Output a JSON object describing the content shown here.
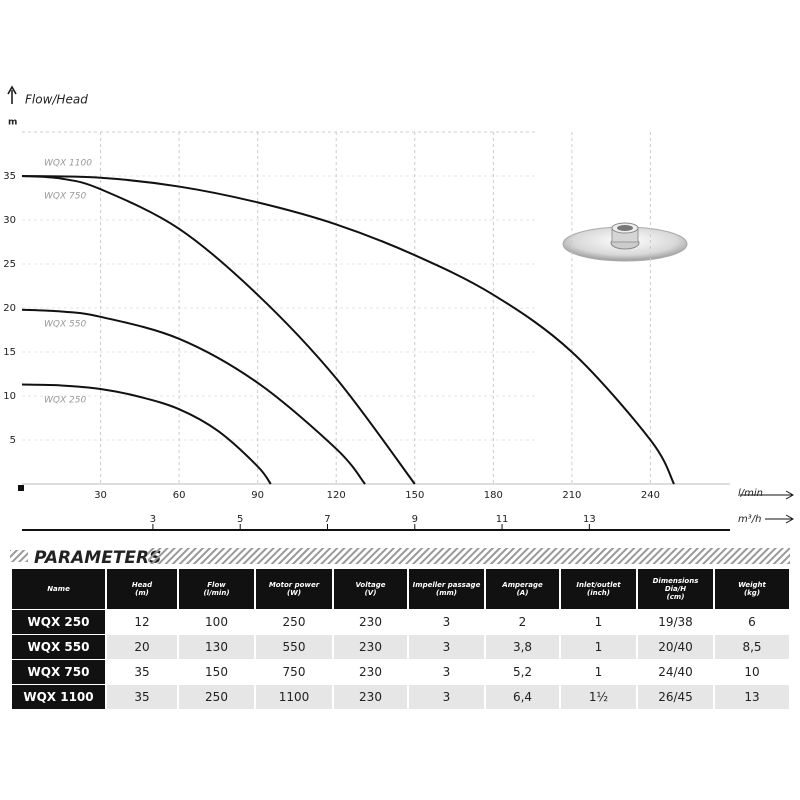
{
  "chart_data": {
    "type": "line",
    "title": "Flow/Head",
    "y_unit": "m",
    "x_unit": "l/min",
    "x2_unit": "m³/h",
    "xlim": [
      0,
      270
    ],
    "xticks": [
      30,
      60,
      90,
      120,
      150,
      180,
      210,
      240
    ],
    "x2lim": [
      0,
      16.2
    ],
    "x2ticks": [
      3,
      5,
      7,
      9,
      11,
      13
    ],
    "ylim": [
      0,
      40
    ],
    "yticks": [
      5,
      10,
      15,
      20,
      25,
      30,
      35
    ],
    "grid": true,
    "series": [
      {
        "name": "WQX 1100",
        "color": "#111111",
        "x": [
          0,
          30,
          60,
          90,
          120,
          150,
          180,
          210,
          240,
          249
        ],
        "values": [
          35,
          34.8,
          33.8,
          32,
          29.5,
          26,
          21.5,
          15,
          5,
          0
        ]
      },
      {
        "name": "WQX 750",
        "color": "#111111",
        "x": [
          0,
          15,
          30,
          60,
          90,
          120,
          150
        ],
        "values": [
          35,
          34.7,
          33.5,
          29,
          21.5,
          12,
          0
        ]
      },
      {
        "name": "WQX 550",
        "color": "#111111",
        "x": [
          0,
          15,
          30,
          60,
          90,
          120,
          131
        ],
        "values": [
          19.8,
          19.6,
          19,
          16.5,
          11.5,
          4,
          0
        ]
      },
      {
        "name": "WQX 250",
        "color": "#111111",
        "x": [
          0,
          15,
          30,
          45,
          60,
          75,
          90,
          95
        ],
        "values": [
          11.3,
          11.2,
          10.8,
          9.9,
          8.5,
          6,
          2,
          0
        ]
      }
    ]
  },
  "table": {
    "title": "PARAMETERS",
    "columns": [
      "Name",
      "Head\n(m)",
      "Flow\n(l/min)",
      "Motor power\n(W)",
      "Voltage\n(V)",
      "Impeller passage\n(mm)",
      "Amperage\n(A)",
      "Inlet/outlet\n(inch)",
      "Dimensions\nDia/H\n(cm)",
      "Weight\n(kg)"
    ],
    "rows": [
      [
        "WQX 250",
        "12",
        "100",
        "250",
        "230",
        "3",
        "2",
        "1",
        "19/38",
        "6"
      ],
      [
        "WQX 550",
        "20",
        "130",
        "550",
        "230",
        "3",
        "3,8",
        "1",
        "20/40",
        "8,5"
      ],
      [
        "WQX 750",
        "35",
        "150",
        "750",
        "230",
        "3",
        "5,2",
        "1",
        "24/40",
        "10"
      ],
      [
        "WQX 1100",
        "35",
        "250",
        "1100",
        "230",
        "3",
        "6,4",
        "1½",
        "26/45",
        "13"
      ]
    ]
  }
}
